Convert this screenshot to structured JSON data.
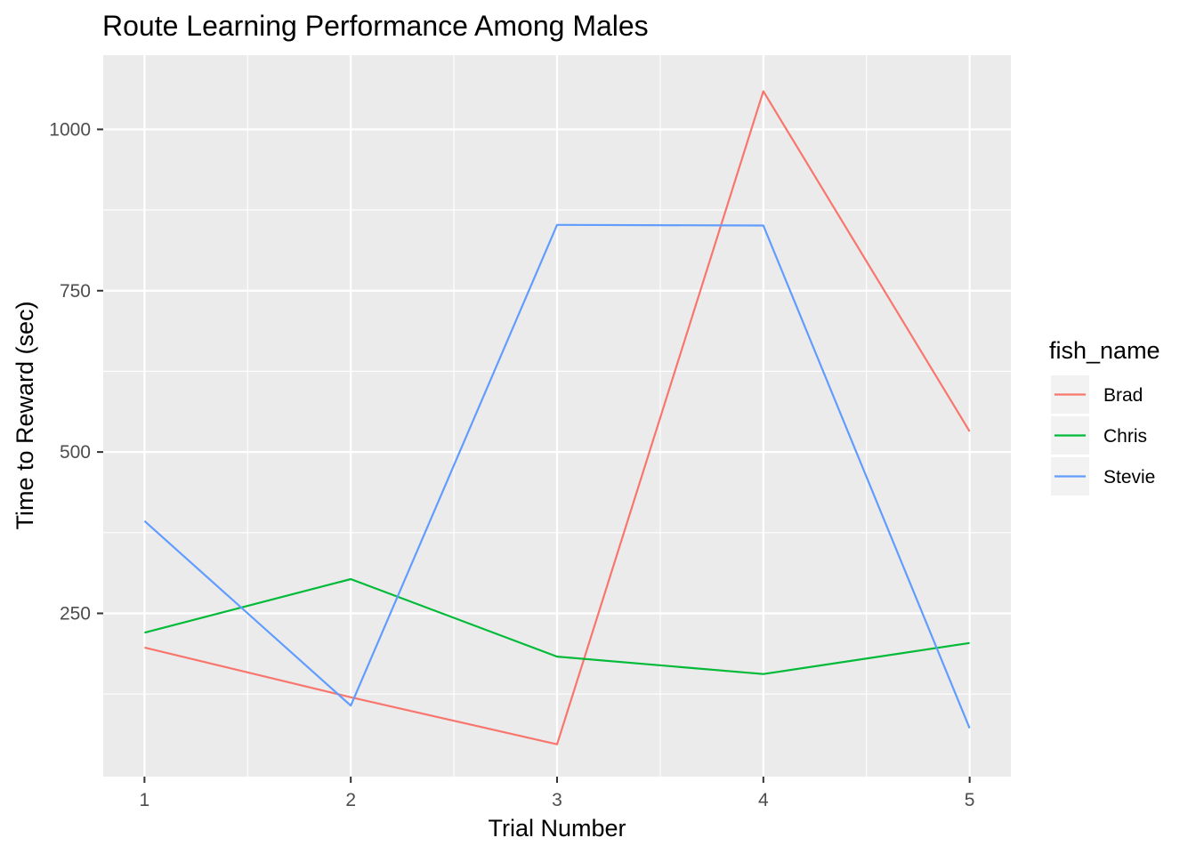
{
  "chart_data": {
    "type": "line",
    "title": "Route Learning Performance Among Males",
    "xlabel": "Trial Number",
    "ylabel": "Time to Reward (sec)",
    "x": [
      1,
      2,
      3,
      4,
      5
    ],
    "xlim": [
      0.8,
      5.2
    ],
    "ylim": [
      -3,
      1115
    ],
    "x_ticks": [
      1,
      2,
      3,
      4,
      5
    ],
    "x_tick_labels": [
      "1",
      "2",
      "3",
      "4",
      "5"
    ],
    "y_ticks": [
      250,
      500,
      750,
      1000
    ],
    "y_tick_labels": [
      "250",
      "500",
      "750",
      "1000"
    ],
    "grid": true,
    "legend": {
      "title": "fish_name",
      "position": "right"
    },
    "series": [
      {
        "name": "Brad",
        "color": "#F8766D",
        "values": [
          197,
          120,
          47,
          1059,
          532
        ]
      },
      {
        "name": "Chris",
        "color": "#00BA38",
        "values": [
          220,
          303,
          183,
          156,
          204
        ]
      },
      {
        "name": "Stevie",
        "color": "#619CFF",
        "values": [
          393,
          107,
          852,
          851,
          72
        ]
      }
    ]
  }
}
